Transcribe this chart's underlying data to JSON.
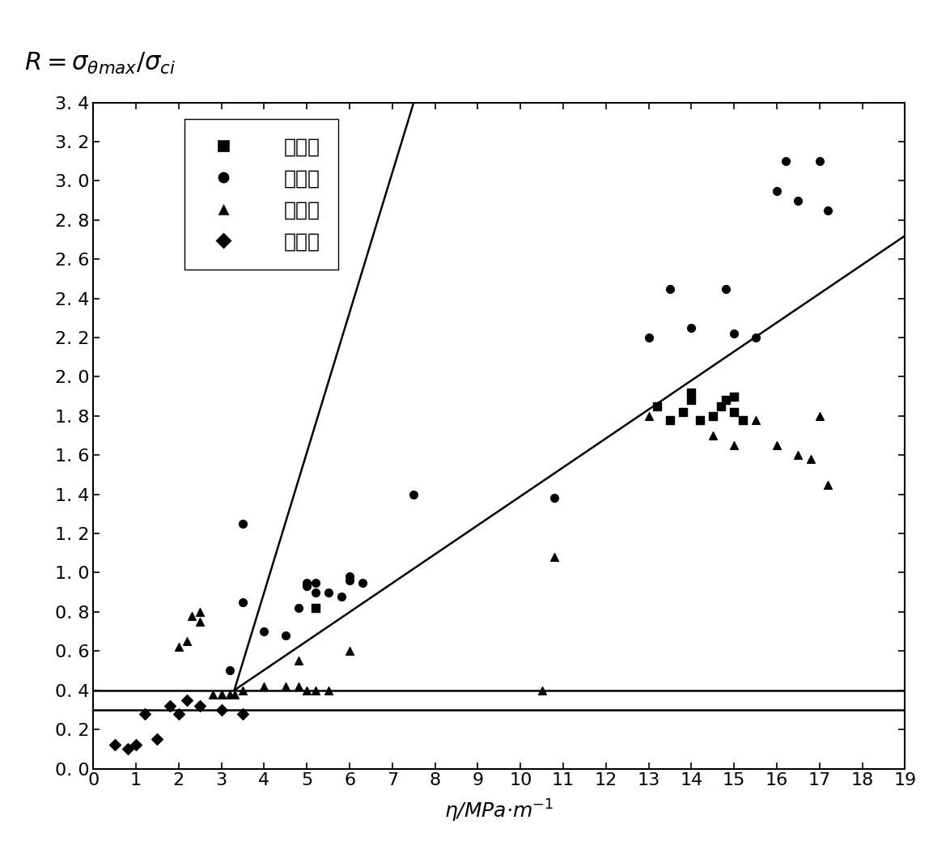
{
  "title": "$\\mathbf{\\mathit{R}}\\mathbf{=}\\boldsymbol{\\sigma}_{\\boldsymbol{\\theta}\\mathbf{max}}\\mathbf{/}\\boldsymbol{\\sigma}_{\\mathbf{ci}}$",
  "xlabel_text": "η/MPa·m⁻¹",
  "xlim": [
    0,
    19
  ],
  "ylim": [
    0.0,
    3.4
  ],
  "xticks": [
    0,
    1,
    2,
    3,
    4,
    5,
    6,
    7,
    8,
    9,
    10,
    11,
    12,
    13,
    14,
    15,
    16,
    17,
    18,
    19
  ],
  "yticks": [
    0.0,
    0.2,
    0.4,
    0.6,
    0.8,
    1.0,
    1.2,
    1.4,
    1.6,
    1.8,
    2.0,
    2.2,
    2.4,
    2.6,
    2.8,
    3.0,
    3.2,
    3.4
  ],
  "line1_x": [
    3.3,
    7.5
  ],
  "line1_y": [
    0.4,
    3.4
  ],
  "line2_x": [
    3.3,
    19.0
  ],
  "line2_y": [
    0.4,
    2.72
  ],
  "hline1": 0.4,
  "hline2": 0.3,
  "strong_x": [
    5.2,
    13.2,
    13.5,
    13.8,
    14.0,
    14.0,
    14.2,
    14.5,
    14.7,
    14.8,
    15.0,
    15.0,
    15.2
  ],
  "strong_y": [
    0.82,
    1.85,
    1.78,
    1.82,
    1.88,
    1.92,
    1.78,
    1.8,
    1.85,
    1.88,
    1.82,
    1.9,
    1.78
  ],
  "medium_x": [
    3.2,
    3.5,
    3.5,
    4.0,
    4.5,
    4.8,
    5.0,
    5.0,
    5.2,
    5.2,
    5.5,
    5.8,
    6.0,
    6.0,
    6.3,
    7.5,
    10.8,
    13.0,
    13.5,
    14.0,
    14.8,
    15.0,
    15.5,
    16.0,
    16.2,
    16.5,
    17.0,
    17.2
  ],
  "medium_y": [
    0.5,
    0.85,
    1.25,
    0.7,
    0.68,
    0.82,
    0.93,
    0.95,
    0.9,
    0.95,
    0.9,
    0.88,
    0.96,
    0.98,
    0.95,
    1.4,
    1.38,
    2.2,
    2.45,
    2.25,
    2.45,
    2.22,
    2.2,
    2.95,
    3.1,
    2.9,
    3.1,
    2.85
  ],
  "weak_x": [
    2.0,
    2.2,
    2.3,
    2.5,
    2.5,
    2.8,
    3.0,
    3.0,
    3.2,
    3.3,
    3.5,
    4.0,
    4.5,
    4.8,
    4.8,
    5.0,
    5.2,
    5.5,
    6.0,
    10.5,
    10.8,
    13.0,
    14.5,
    15.0,
    15.5,
    16.0,
    16.5,
    16.8,
    17.0,
    17.2
  ],
  "weak_y": [
    0.62,
    0.65,
    0.78,
    0.75,
    0.8,
    0.38,
    0.38,
    0.38,
    0.38,
    0.38,
    0.4,
    0.42,
    0.42,
    0.42,
    0.55,
    0.4,
    0.4,
    0.4,
    0.6,
    0.4,
    1.08,
    1.8,
    1.7,
    1.65,
    1.78,
    1.65,
    1.6,
    1.58,
    1.8,
    1.45
  ],
  "none_x": [
    0.5,
    0.8,
    1.0,
    1.2,
    1.5,
    1.8,
    2.0,
    2.2,
    2.5,
    3.0,
    3.5
  ],
  "none_y": [
    0.12,
    0.1,
    0.12,
    0.28,
    0.15,
    0.32,
    0.28,
    0.35,
    0.32,
    0.3,
    0.28
  ],
  "legend_labels": [
    "强岩爆",
    "中岩爆",
    "弱岩爆",
    "无岩爆"
  ],
  "bg_color": "white",
  "marker_color": "black",
  "marker_size": 7,
  "line_lw": 1.8,
  "tick_fontsize": 16,
  "legend_fontsize": 18,
  "xlabel_fontsize": 18
}
